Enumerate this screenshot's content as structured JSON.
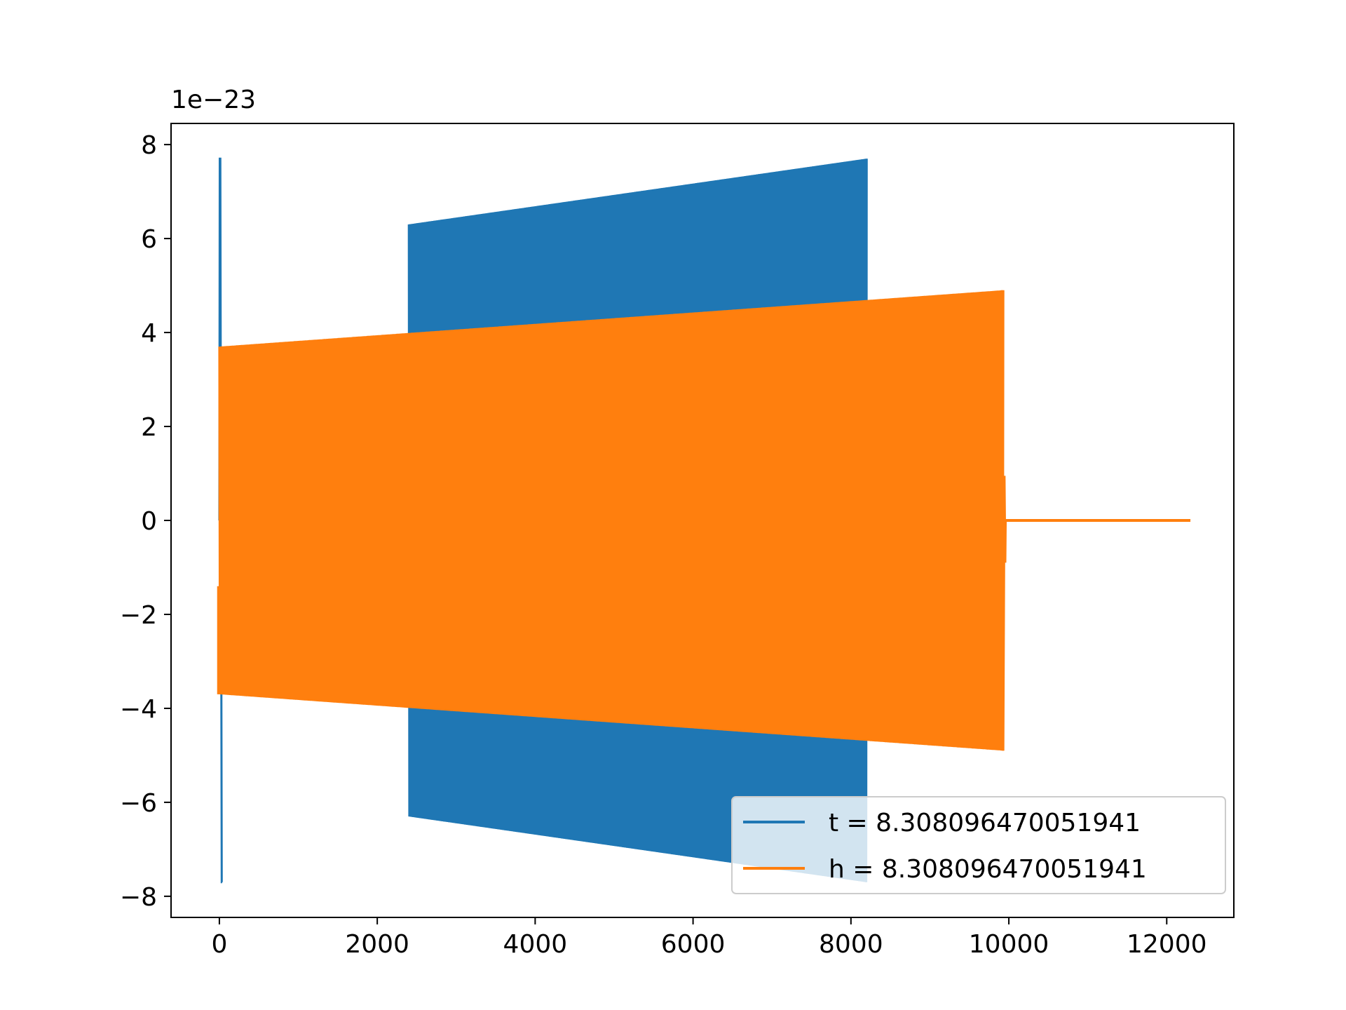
{
  "chart_data": {
    "type": "line",
    "title": "",
    "xlabel": "",
    "ylabel": "",
    "xlim": [
      -612,
      12850
    ],
    "ylim": [
      -8.45,
      8.45
    ],
    "y_offset_text": "1e−23",
    "xticks": [
      {
        "value": 0,
        "label": "0"
      },
      {
        "value": 2000,
        "label": "2000"
      },
      {
        "value": 4000,
        "label": "4000"
      },
      {
        "value": 6000,
        "label": "6000"
      },
      {
        "value": 8000,
        "label": "8000"
      },
      {
        "value": 10000,
        "label": "10000"
      },
      {
        "value": 12000,
        "label": "12000"
      }
    ],
    "yticks": [
      {
        "value": 8,
        "label": "8"
      },
      {
        "value": 6,
        "label": "6"
      },
      {
        "value": 4,
        "label": "4"
      },
      {
        "value": 2,
        "label": "2"
      },
      {
        "value": 0,
        "label": "0"
      },
      {
        "value": -2,
        "label": "−2"
      },
      {
        "value": -4,
        "label": "−4"
      },
      {
        "value": -6,
        "label": "−6"
      },
      {
        "value": -8,
        "label": "−8"
      }
    ],
    "grid": false,
    "legend_position": "lower-right",
    "series": [
      {
        "name": "t = 8.308096470051941",
        "color": "#1f77b4",
        "envelope": {
          "x": [
            0,
            2400,
            8200
          ],
          "upper": [
            7.7,
            6.3,
            7.7
          ],
          "lower": [
            -7.7,
            -6.3,
            -7.7
          ]
        },
        "spike": {
          "x_start": 0,
          "x_end": 30,
          "min": -7.7,
          "max": 7.7
        },
        "burst": {
          "x_start": 2400,
          "x_end": 8200,
          "amp_start": 6.3,
          "amp_end": 7.7
        }
      },
      {
        "name": "h = 8.308096470051941",
        "color": "#ff7f0e",
        "envelope": {
          "x": [
            0,
            9930
          ],
          "upper": [
            3.7,
            4.9
          ],
          "lower": [
            -3.7,
            -4.9
          ]
        },
        "burst": {
          "x_start": 0,
          "x_end": 9930,
          "amp_start": 3.7,
          "amp_end": 4.9
        },
        "tail": {
          "x_start": 9930,
          "x_end": 12300,
          "value": 0
        }
      }
    ]
  }
}
